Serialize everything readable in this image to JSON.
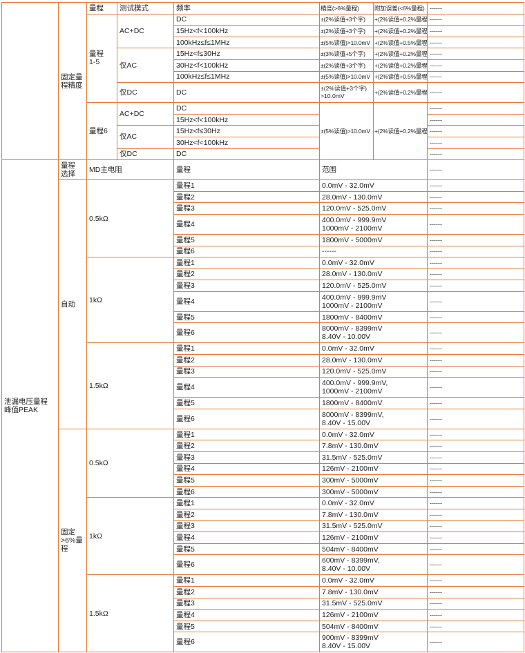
{
  "colors": {
    "border": "#E8792E",
    "text": "#222222"
  },
  "top": {
    "section_label": "固定量\n程精度",
    "header": {
      "range": "量程",
      "mode": "测试模式",
      "freq": "频率",
      "acc": "精度(>6%量程)",
      "extra": "附加误差(<6%量程)",
      "note": "------"
    },
    "g1": {
      "range": "量程\n1-5",
      "acdc": {
        "mode": "AC+DC",
        "rows": [
          {
            "freq": "DC",
            "acc": "±(2%读值+3个字)",
            "extra": "+(2%读值+0.2%量程)",
            "note": "------"
          },
          {
            "freq": "15Hz<f<100kHz",
            "acc": "±(2%读值+3个字)",
            "extra": "+(2%读值+0.2%量程)",
            "note": "------"
          },
          {
            "freq": "100kHz≤f≤1MHz",
            "acc": "±(5%读值)>10.0mV",
            "extra": "+(2%读值+0.5%量程)",
            "note": "------"
          }
        ]
      },
      "ac": {
        "mode": "仅AC",
        "rows": [
          {
            "freq": "15Hz<f≤30Hz",
            "acc": "±(3%读值+5个字)",
            "extra": "+(2%读值+0.2%量程)",
            "note": "------"
          },
          {
            "freq": "30Hz<f<100kHz",
            "acc": "±(2%读值+3个字)",
            "extra": "+(2%读值+0.2%量程)",
            "note": "------"
          },
          {
            "freq": "100kHz≤f≤1MHz",
            "acc": "±(5%读值)>10.0mV",
            "extra": "+(2%读值+0.5%量程)",
            "note": "------"
          }
        ]
      },
      "dc": {
        "mode": "仅DC",
        "freq": "DC",
        "acc": "±(2%读值+3个字)\n>10.0mV",
        "extra": "+(2%读值+0.2%量程)",
        "note": "------"
      }
    },
    "g2": {
      "range": "量程6",
      "acc": "±(5%读值)>10.0mV",
      "extra": "+(2%读值+0.2%量程)",
      "acdc": {
        "mode": "AC+DC",
        "rows": [
          {
            "freq": "DC",
            "note": "------"
          },
          {
            "freq": "15Hz<f<100kHz",
            "note": "------"
          }
        ]
      },
      "ac": {
        "mode": "仅AC",
        "rows": [
          {
            "freq": "15Hz<f≤30Hz",
            "note": "------"
          },
          {
            "freq": "30Hz<f<100kHz",
            "note": "------"
          }
        ]
      },
      "dc": {
        "mode": "仅DC",
        "freq": "DC",
        "note": "------"
      }
    }
  },
  "bottom": {
    "section_label": "泄漏电压量程\n峰值PEAK",
    "header": {
      "select": "量程\n选择",
      "resistor": "MD主电阻",
      "range": "量程",
      "span": "范围",
      "note": "------"
    },
    "modes": [
      {
        "label": "自动",
        "groups": [
          {
            "res": "0.5kΩ",
            "rows": [
              [
                "量程1",
                "0.0mV - 32.0mV",
                "------"
              ],
              [
                "量程2",
                "28.0mV - 130.0mV",
                "------"
              ],
              [
                "量程3",
                "120.0mV - 525.0mV",
                "------"
              ],
              [
                "量程4",
                "400.0mV - 999.9mV\n1000mV - 2100mV",
                "------"
              ],
              [
                "量程5",
                "1800mV - 5000mV",
                "------"
              ],
              [
                "量程6",
                "------",
                "------"
              ]
            ]
          },
          {
            "res": "1kΩ",
            "rows": [
              [
                "量程1",
                "0.0mV - 32.0mV",
                "------"
              ],
              [
                "量程2",
                "28.0mV - 130.0mV",
                "------"
              ],
              [
                "量程3",
                "120.0mV - 525.0mV",
                "------"
              ],
              [
                "量程4",
                "400.0mV - 999.9mV\n1000mV - 2100mV",
                "------"
              ],
              [
                "量程5",
                "1800mV - 8400mV",
                "------"
              ],
              [
                "量程6",
                "8000mV - 8399mV\n8.40V - 10.00V",
                "------"
              ]
            ]
          },
          {
            "res": "1.5kΩ",
            "rows": [
              [
                "量程1",
                "0.0mV - 32.0mV",
                "------"
              ],
              [
                "量程2",
                "28.0mV - 130.0mV",
                "------"
              ],
              [
                "量程3",
                "120.0mV - 525.0mV",
                "------"
              ],
              [
                "量程4",
                "400.0mV - 999.9mV,\n1000mV - 2100mV",
                "------"
              ],
              [
                "量程5",
                "1800mV - 8400mV",
                "------"
              ],
              [
                "量程6",
                "8000mV - 8399mV,\n8.40V - 15.00V",
                "------"
              ]
            ]
          }
        ]
      },
      {
        "label": "固定\n>6%量\n程",
        "groups": [
          {
            "res": "0.5kΩ",
            "rows": [
              [
                "量程1",
                "0.0mV - 32.0mV",
                "------"
              ],
              [
                "量程2",
                "7.8mV - 130.0mV",
                "------"
              ],
              [
                "量程3",
                "31.5mV - 525.0mV",
                "------"
              ],
              [
                "量程4",
                "126mV - 2100mV",
                "------"
              ],
              [
                "量程5",
                "300mV - 5000mV",
                "------"
              ],
              [
                "量程6",
                "300mV - 5000mV",
                "------"
              ]
            ]
          },
          {
            "res": "1kΩ",
            "rows": [
              [
                "量程1",
                "0.0mV - 32.0mV",
                "------"
              ],
              [
                "量程2",
                "7.8mV - 130.0mV",
                "------"
              ],
              [
                "量程3",
                "31.5mV - 525.0mV",
                "------"
              ],
              [
                "量程4",
                "126mV - 2100mV",
                "------"
              ],
              [
                "量程5",
                "504mV - 8400mV",
                "------"
              ],
              [
                "量程6",
                "600mV - 8399mV,\n8.40V - 10.00V",
                "------"
              ]
            ]
          },
          {
            "res": "1.5kΩ",
            "rows": [
              [
                "量程1",
                "0.0mV - 32.0mV",
                "------"
              ],
              [
                "量程2",
                "7.8mV - 130.0mV",
                "------"
              ],
              [
                "量程3",
                "31.5mV - 525.0mV",
                "------"
              ],
              [
                "量程4",
                "126mV - 2100mV",
                "------"
              ],
              [
                "量程5",
                "504mV - 8400mV",
                "------"
              ],
              [
                "量程6",
                "900mV - 8399mV\n8.40V - 15.00V",
                "------"
              ]
            ]
          }
        ]
      }
    ]
  }
}
